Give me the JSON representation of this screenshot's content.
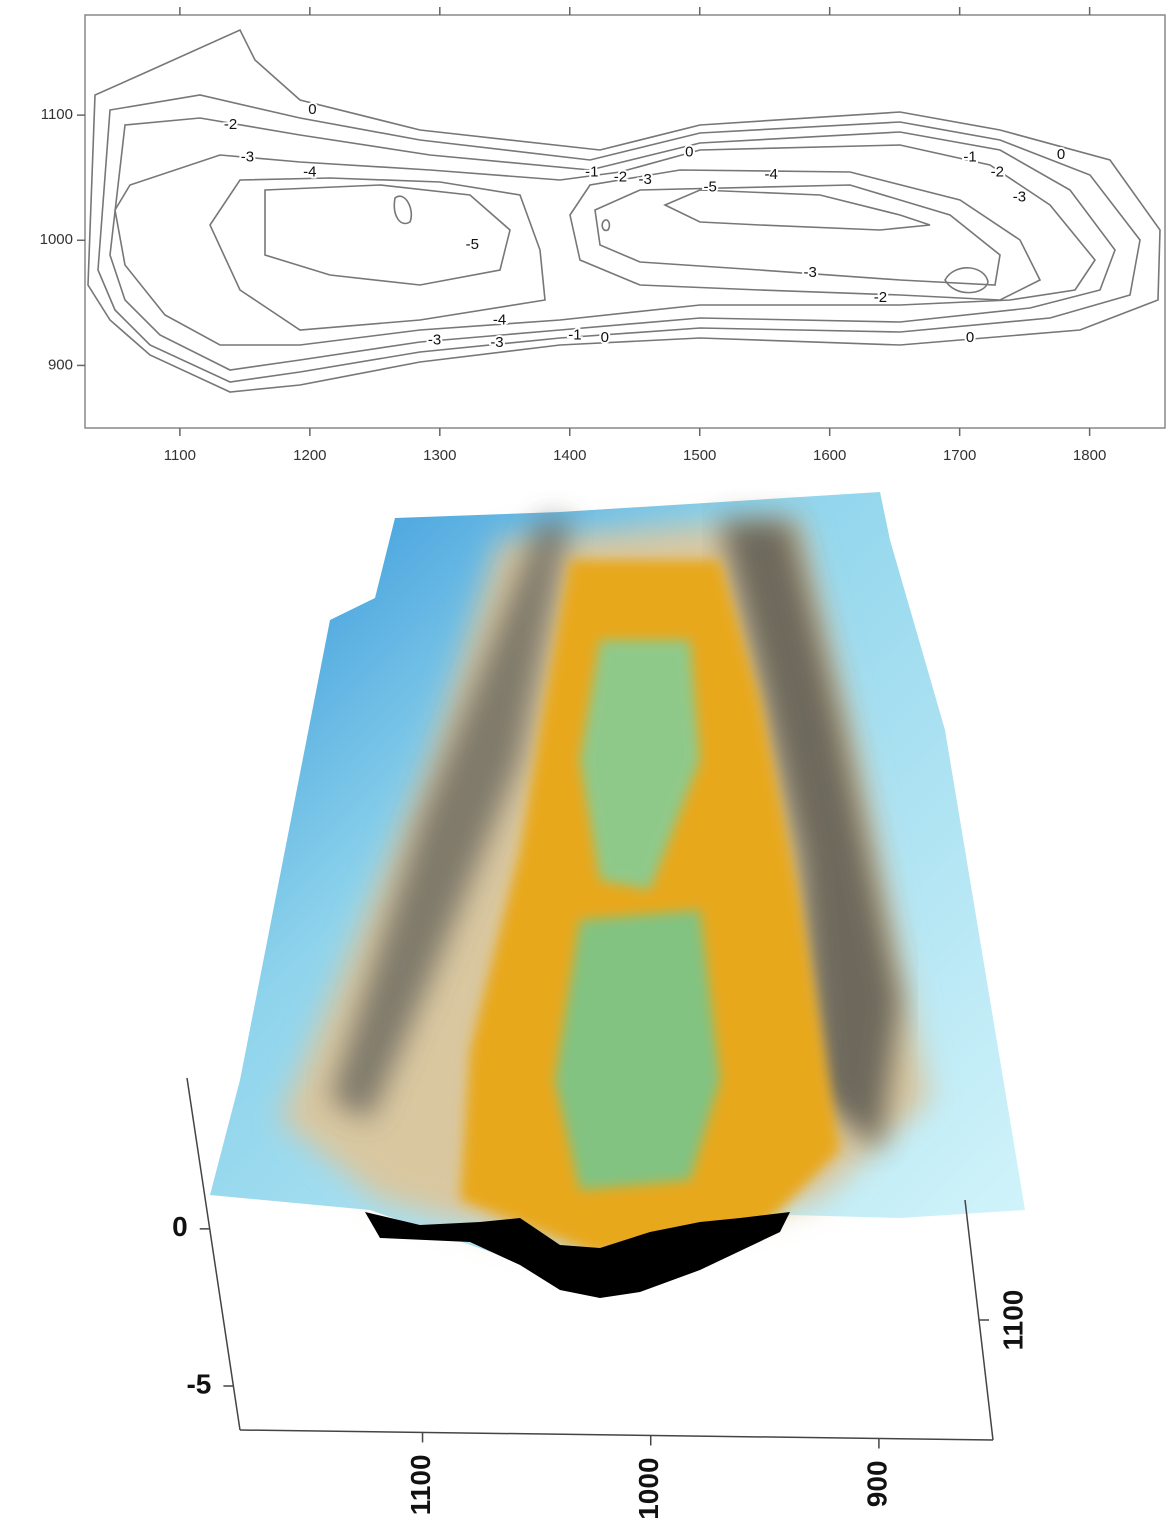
{
  "chart_data": [
    {
      "type": "contour",
      "xlim": [
        1027,
        1858
      ],
      "ylim": [
        850,
        1180
      ],
      "xticks": [
        1100,
        1200,
        1300,
        1400,
        1500,
        1600,
        1700,
        1800
      ],
      "yticks": [
        900,
        1000,
        1100
      ],
      "contour_labels": [
        {
          "level": 0,
          "x": 1202,
          "y": 1104
        },
        {
          "level": -2,
          "x": 1139,
          "y": 1092
        },
        {
          "level": -3,
          "x": 1152,
          "y": 1066
        },
        {
          "level": -4,
          "x": 1200,
          "y": 1054
        },
        {
          "level": -5,
          "x": 1325,
          "y": 996
        },
        {
          "level": -1,
          "x": 1417,
          "y": 1054
        },
        {
          "level": -2,
          "x": 1439,
          "y": 1050
        },
        {
          "level": -3,
          "x": 1458,
          "y": 1048
        },
        {
          "level": 0,
          "x": 1492,
          "y": 1070
        },
        {
          "level": -5,
          "x": 1508,
          "y": 1042
        },
        {
          "level": -4,
          "x": 1555,
          "y": 1052
        },
        {
          "level": -1,
          "x": 1708,
          "y": 1066
        },
        {
          "level": -2,
          "x": 1729,
          "y": 1054
        },
        {
          "level": 0,
          "x": 1778,
          "y": 1068
        },
        {
          "level": -3,
          "x": 1746,
          "y": 1034
        },
        {
          "level": -3,
          "x": 1585,
          "y": 974
        },
        {
          "level": -2,
          "x": 1639,
          "y": 954
        },
        {
          "level": -4,
          "x": 1346,
          "y": 936
        },
        {
          "level": -3,
          "x": 1344,
          "y": 918
        },
        {
          "level": -3,
          "x": 1296,
          "y": 920
        },
        {
          "level": -1,
          "x": 1404,
          "y": 924
        },
        {
          "level": 0,
          "x": 1427,
          "y": 922
        },
        {
          "level": 0,
          "x": 1708,
          "y": 922
        }
      ]
    },
    {
      "type": "surface",
      "xlim": [
        1180,
        850
      ],
      "xticks": [
        1100,
        1000,
        900
      ],
      "ylim": [
        1140,
        1060
      ],
      "yticks": [
        1100
      ],
      "zlim": [
        4.8,
        -6.4
      ],
      "zticks": [
        0,
        -5
      ]
    }
  ]
}
